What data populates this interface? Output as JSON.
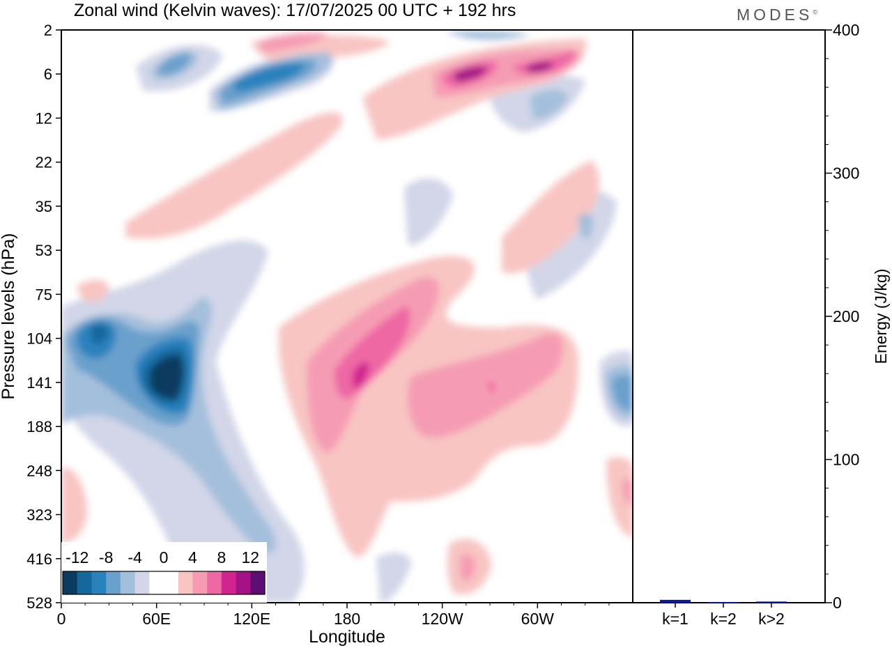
{
  "title": "Zonal wind (Kelvin waves):  17/07/2025  00 UTC  + 192 hrs",
  "logo": "MODES",
  "chart_data": [
    {
      "type": "heatmap",
      "xlabel": "Longitude",
      "ylabel": "Pressure levels (hPa)",
      "x_tick_labels": [
        "0",
        "60E",
        "120E",
        "180",
        "120W",
        "60W"
      ],
      "y_tick_labels": [
        "2",
        "6",
        "12",
        "22",
        "35",
        "53",
        "75",
        "104",
        "141",
        "188",
        "248",
        "323",
        "416",
        "528"
      ],
      "colorbar": {
        "labels": [
          "-12",
          "-8",
          "-4",
          "0",
          "4",
          "8",
          "12"
        ],
        "colors": [
          "#0b3b5e",
          "#14689c",
          "#2a82bd",
          "#6aa0cc",
          "#a4bfdc",
          "#d2d6e8",
          "#ffffff",
          "#ffffff",
          "#f8c5c3",
          "#f59cb4",
          "#ee68a4",
          "#d1248f",
          "#a51285",
          "#5d0e73"
        ]
      },
      "features": [
        {
          "label": "strong negative core",
          "lon_range": [
            40,
            95
          ],
          "p_range": [
            90,
            200
          ],
          "min_value": -12
        },
        {
          "label": "negative lower branch",
          "lon_range": [
            0,
            130
          ],
          "p_range": [
            75,
            528
          ],
          "min_value": -8
        },
        {
          "label": "positive upper-troposphere",
          "lon_range": [
            125,
            290
          ],
          "p_range": [
            65,
            420
          ],
          "max_value": 10
        },
        {
          "label": "negative stratospheric band",
          "lon_range": [
            40,
            160
          ],
          "p_range": [
            2,
            15
          ],
          "min_value": -10
        },
        {
          "label": "positive stratospheric band",
          "lon_range": [
            230,
            330
          ],
          "p_range": [
            2,
            12
          ],
          "max_value": 11
        }
      ]
    },
    {
      "type": "bar",
      "ylabel": "Energy (J/kg)",
      "categories": [
        "k=1",
        "k=2",
        "k>2"
      ],
      "values": [
        2.0,
        0.5,
        0.8
      ],
      "ylim": [
        0,
        400
      ],
      "y_tick_labels": [
        "0",
        "100",
        "200",
        "300",
        "400"
      ],
      "bar_color": "#0a1a9e"
    }
  ]
}
